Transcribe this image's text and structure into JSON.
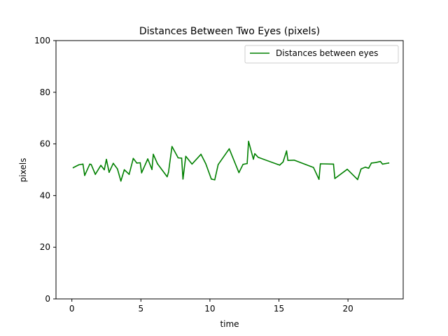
{
  "chart_data": {
    "type": "line",
    "title": "Distances Between Two Eyes (pixels)",
    "xlabel": "time",
    "ylabel": "pixels",
    "xlim": [
      -1.15,
      24.0
    ],
    "ylim": [
      0,
      100
    ],
    "xticks": [
      0,
      5,
      10,
      15,
      20
    ],
    "yticks": [
      0,
      20,
      40,
      60,
      80,
      100
    ],
    "grid": false,
    "legend_position": "top-right",
    "series": [
      {
        "name": "Distances between eyes",
        "color": "#008000",
        "x": [
          0.1,
          0.5,
          0.8,
          0.93,
          1.3,
          1.4,
          1.7,
          2.1,
          2.35,
          2.5,
          2.7,
          3.0,
          3.3,
          3.55,
          3.8,
          4.15,
          4.45,
          4.7,
          4.95,
          5.05,
          5.5,
          5.8,
          5.9,
          6.2,
          6.9,
          7.0,
          7.25,
          7.7,
          7.95,
          8.05,
          8.25,
          8.7,
          9.35,
          9.7,
          10.1,
          10.35,
          10.6,
          11.4,
          12.1,
          12.4,
          12.7,
          12.8,
          13.15,
          13.25,
          13.5,
          15.05,
          15.3,
          15.55,
          15.65,
          16.1,
          17.5,
          17.9,
          18.0,
          18.95,
          19.05,
          19.95,
          20.7,
          20.95,
          21.25,
          21.5,
          21.7,
          22.0,
          22.35,
          22.5,
          22.95
        ],
        "y": [
          50.8,
          51.9,
          52.2,
          47.8,
          52.2,
          52.0,
          48.2,
          51.7,
          50.0,
          54.0,
          49.0,
          52.5,
          50.3,
          45.6,
          50.0,
          48.2,
          54.4,
          52.6,
          52.7,
          48.8,
          54.2,
          50.1,
          56.0,
          52.3,
          47.3,
          49.0,
          59.0,
          54.6,
          54.5,
          46.4,
          55.2,
          52.2,
          56.0,
          52.3,
          46.4,
          46.1,
          52.0,
          58.1,
          48.9,
          52.1,
          52.4,
          61.0,
          54.1,
          56.2,
          54.8,
          51.8,
          53.0,
          57.3,
          53.6,
          53.7,
          50.9,
          46.3,
          52.3,
          52.2,
          46.6,
          50.2,
          46.2,
          50.3,
          51.0,
          50.6,
          52.6,
          52.8,
          53.2,
          52.2,
          52.6
        ]
      }
    ]
  }
}
